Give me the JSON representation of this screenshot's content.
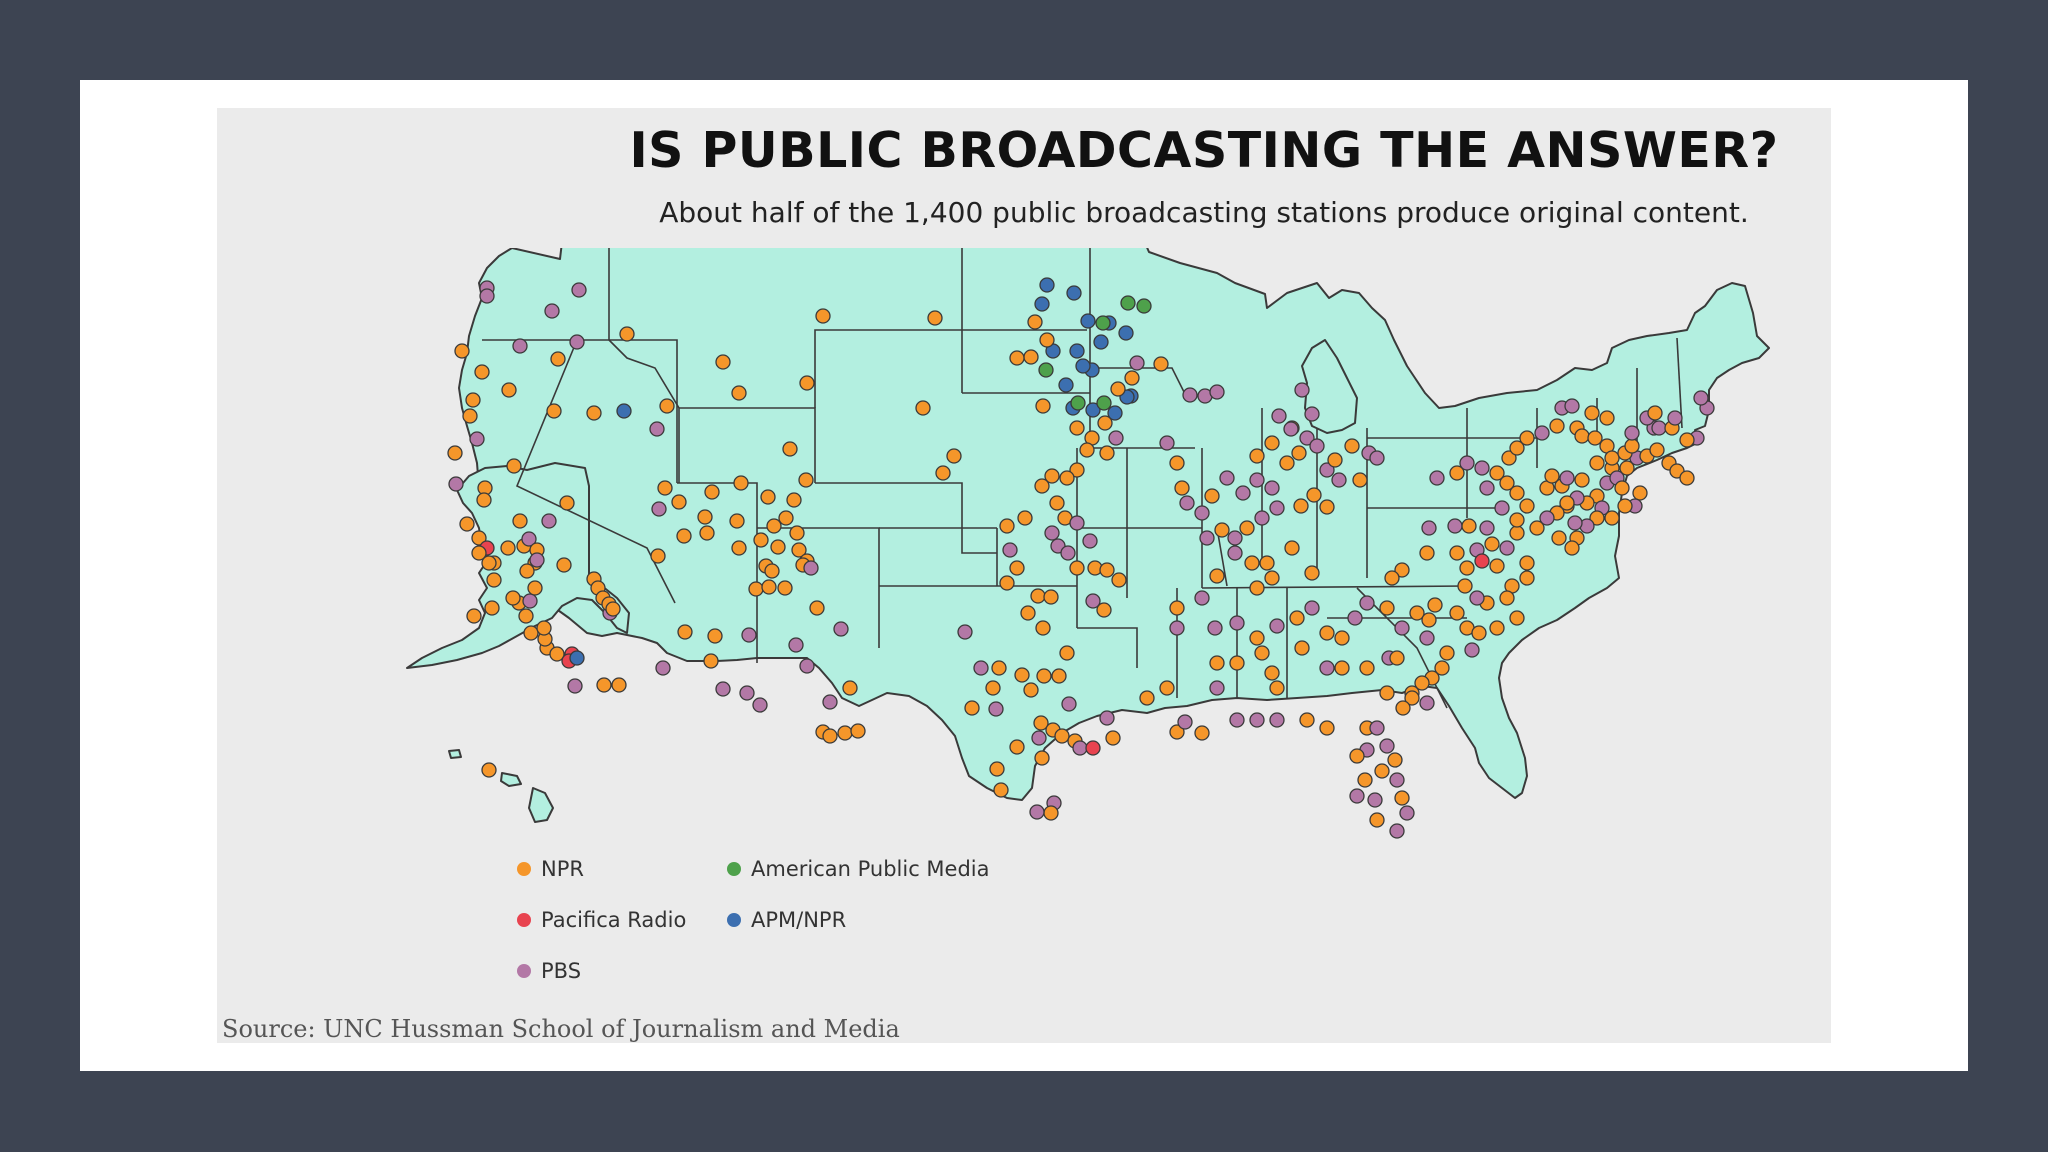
{
  "title": "IS PUBLIC BROADCASTING THE ANSWER?",
  "subtitle": "About half of the 1,400 public broadcasting stations produce original content.",
  "source": "Source: UNC Hussman School of Journalism and Media",
  "colors": {
    "land": "#b3efe0",
    "border": "#3a3a3a",
    "npr": "#f5962a",
    "pacifica": "#e8434f",
    "pbs": "#b378a6",
    "apm": "#4ea14b",
    "apmnpr": "#3c6fb0"
  },
  "legend": [
    {
      "label": "NPR",
      "color": "#f5962a"
    },
    {
      "label": "American Public Media",
      "color": "#4ea14b"
    },
    {
      "label": "Pacifica Radio",
      "color": "#e8434f"
    },
    {
      "label": "APM/NPR",
      "color": "#3c6fb0"
    },
    {
      "label": "PBS",
      "color": "#b378a6"
    }
  ]
}
